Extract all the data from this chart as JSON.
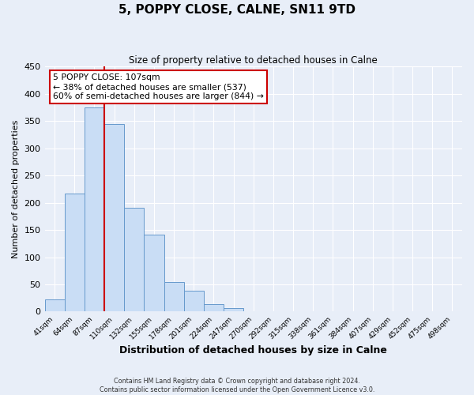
{
  "title": "5, POPPY CLOSE, CALNE, SN11 9TD",
  "subtitle": "Size of property relative to detached houses in Calne",
  "xlabel": "Distribution of detached houses by size in Calne",
  "ylabel": "Number of detached properties",
  "bar_labels": [
    "41sqm",
    "64sqm",
    "87sqm",
    "110sqm",
    "132sqm",
    "155sqm",
    "178sqm",
    "201sqm",
    "224sqm",
    "247sqm",
    "270sqm",
    "292sqm",
    "315sqm",
    "338sqm",
    "361sqm",
    "384sqm",
    "407sqm",
    "429sqm",
    "452sqm",
    "475sqm",
    "498sqm"
  ],
  "bar_values": [
    23,
    217,
    375,
    344,
    190,
    142,
    55,
    38,
    14,
    6,
    0,
    1,
    0,
    0,
    0,
    0,
    1,
    0,
    0,
    1,
    0
  ],
  "bar_color": "#c9ddf5",
  "bar_edge_color": "#6699cc",
  "property_line_color": "#cc0000",
  "annotation_text": "5 POPPY CLOSE: 107sqm\n← 38% of detached houses are smaller (537)\n60% of semi-detached houses are larger (844) →",
  "annotation_box_color": "#ffffff",
  "annotation_box_edge_color": "#cc0000",
  "ylim": [
    0,
    450
  ],
  "yticks": [
    0,
    50,
    100,
    150,
    200,
    250,
    300,
    350,
    400,
    450
  ],
  "footer_line1": "Contains HM Land Registry data © Crown copyright and database right 2024.",
  "footer_line2": "Contains public sector information licensed under the Open Government Licence v3.0.",
  "background_color": "#e8eef8",
  "grid_color": "#ffffff"
}
